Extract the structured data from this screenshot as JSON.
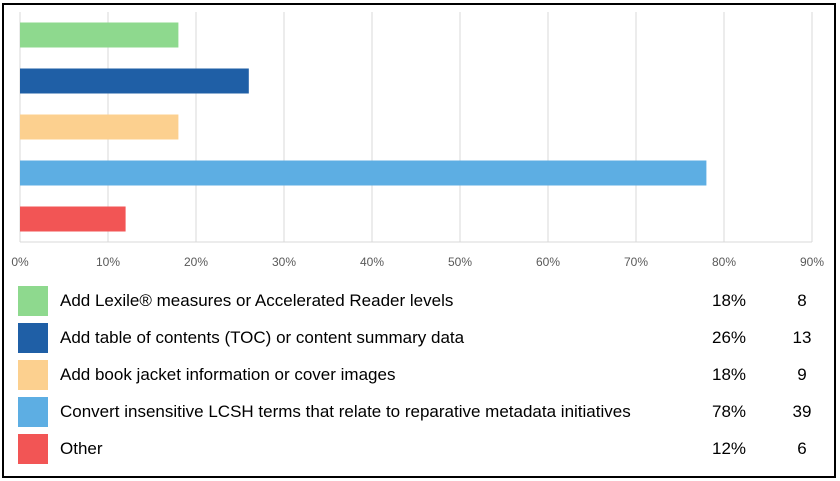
{
  "chart_data": {
    "type": "bar",
    "orientation": "horizontal",
    "categories": [
      "Add Lexile® measures or Accelerated Reader levels",
      "Add table of contents (TOC) or content summary data",
      "Add book jacket information or cover images",
      "Convert insensitive LCSH terms that relate to reparative metadata initiatives",
      "Other"
    ],
    "values": [
      18,
      26,
      18,
      78,
      12
    ],
    "counts": [
      8,
      13,
      9,
      39,
      6
    ],
    "percent_labels": [
      "18%",
      "26%",
      "18%",
      "78%",
      "12%"
    ],
    "count_labels": [
      "8",
      "13",
      "9",
      "39",
      "6"
    ],
    "colors": [
      "#8ED98E",
      "#1F5FA6",
      "#FCD08F",
      "#5DAEE3",
      "#F25555"
    ],
    "xlim": [
      0,
      90
    ],
    "xticks": [
      0,
      10,
      20,
      30,
      40,
      50,
      60,
      70,
      80,
      90
    ],
    "xtick_labels": [
      "0%",
      "10%",
      "20%",
      "30%",
      "40%",
      "50%",
      "60%",
      "70%",
      "80%",
      "90%"
    ],
    "grid": true,
    "legend": "bottom table with swatches, percentages and counts"
  }
}
